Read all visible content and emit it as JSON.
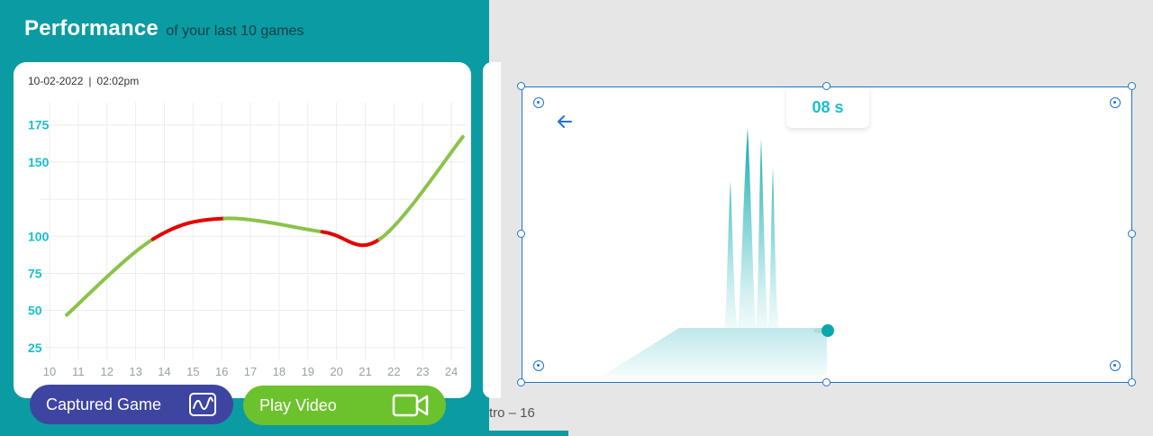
{
  "header": {
    "title": "Performance",
    "subtitle": "of your last 10 games"
  },
  "card": {
    "date": "10-02-2022",
    "separator": "|",
    "time": "02:02pm"
  },
  "chart_data": {
    "type": "line",
    "title": "",
    "xlabel": "",
    "ylabel": "",
    "x_ticks": [
      10,
      11,
      12,
      13,
      14,
      15,
      16,
      17,
      18,
      19,
      20,
      21,
      22,
      23,
      24
    ],
    "y_ticks": [
      25,
      50,
      75,
      100,
      125,
      150,
      175
    ],
    "y_tick_labels": [
      "25",
      "50",
      "75",
      "100",
      "",
      "150",
      "175"
    ],
    "xlim": [
      10,
      24.5
    ],
    "ylim": [
      17,
      190
    ],
    "grid": true,
    "points": [
      {
        "x": 10.6,
        "y": 47
      },
      {
        "x": 13.6,
        "y": 98
      },
      {
        "x": 16.1,
        "y": 112
      },
      {
        "x": 19.5,
        "y": 103
      },
      {
        "x": 21.5,
        "y": 98
      },
      {
        "x": 24.4,
        "y": 167
      }
    ],
    "segment_colors": [
      "#8bc34a",
      "#e60000",
      "#8bc34a",
      "#e60000",
      "#8bc34a"
    ]
  },
  "buttons": {
    "captured_game": "Captured Game",
    "play_video": "Play Video"
  },
  "canvas": {
    "timer": "08 s",
    "frame_label": "tro – 16"
  },
  "colors": {
    "panel": "#0b9ba3",
    "tick_label": "#19bfcf",
    "line_good": "#8bc34a",
    "line_bad": "#e60000",
    "captured_button": "#3d45a0",
    "video_button": "#6cc22d",
    "selection": "#1e73d6"
  },
  "icons": {
    "captured_game": "chart-wave-icon",
    "play_video": "video-camera-icon",
    "back": "arrow-left-icon"
  }
}
